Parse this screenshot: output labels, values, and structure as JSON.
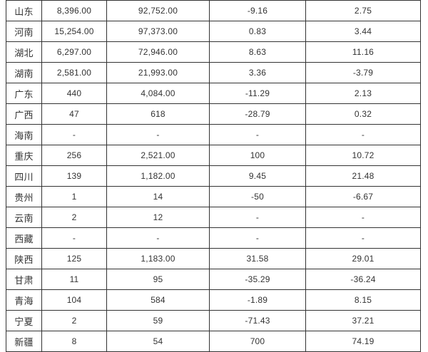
{
  "colors": {
    "border": "#333333",
    "text": "#333333",
    "background": "#ffffff"
  },
  "table": {
    "description": "province-data-table",
    "rows": [
      {
        "name": "山东",
        "v1": "8,396.00",
        "v2": "92,752.00",
        "v3": "-9.16",
        "v4": "2.75"
      },
      {
        "name": "河南",
        "v1": "15,254.00",
        "v2": "97,373.00",
        "v3": "0.83",
        "v4": "3.44"
      },
      {
        "name": "湖北",
        "v1": "6,297.00",
        "v2": "72,946.00",
        "v3": "8.63",
        "v4": "11.16"
      },
      {
        "name": "湖南",
        "v1": "2,581.00",
        "v2": "21,993.00",
        "v3": "3.36",
        "v4": "-3.79"
      },
      {
        "name": "广东",
        "v1": "440",
        "v2": "4,084.00",
        "v3": "-11.29",
        "v4": "2.13"
      },
      {
        "name": "广西",
        "v1": "47",
        "v2": "618",
        "v3": "-28.79",
        "v4": "0.32"
      },
      {
        "name": "海南",
        "v1": "-",
        "v2": "-",
        "v3": "-",
        "v4": "-"
      },
      {
        "name": "重庆",
        "v1": "256",
        "v2": "2,521.00",
        "v3": "100",
        "v4": "10.72"
      },
      {
        "name": "四川",
        "v1": "139",
        "v2": "1,182.00",
        "v3": "9.45",
        "v4": "21.48"
      },
      {
        "name": "贵州",
        "v1": "1",
        "v2": "14",
        "v3": "-50",
        "v4": "-6.67"
      },
      {
        "name": "云南",
        "v1": "2",
        "v2": "12",
        "v3": "-",
        "v4": "-"
      },
      {
        "name": "西藏",
        "v1": "-",
        "v2": "-",
        "v3": "-",
        "v4": "-"
      },
      {
        "name": "陕西",
        "v1": "125",
        "v2": "1,183.00",
        "v3": "31.58",
        "v4": "29.01"
      },
      {
        "name": "甘肃",
        "v1": "11",
        "v2": "95",
        "v3": "-35.29",
        "v4": "-36.24"
      },
      {
        "name": "青海",
        "v1": "104",
        "v2": "584",
        "v3": "-1.89",
        "v4": "8.15"
      },
      {
        "name": "宁夏",
        "v1": "2",
        "v2": "59",
        "v3": "-71.43",
        "v4": "37.21"
      },
      {
        "name": "新疆",
        "v1": "8",
        "v2": "54",
        "v3": "700",
        "v4": "74.19"
      }
    ]
  }
}
